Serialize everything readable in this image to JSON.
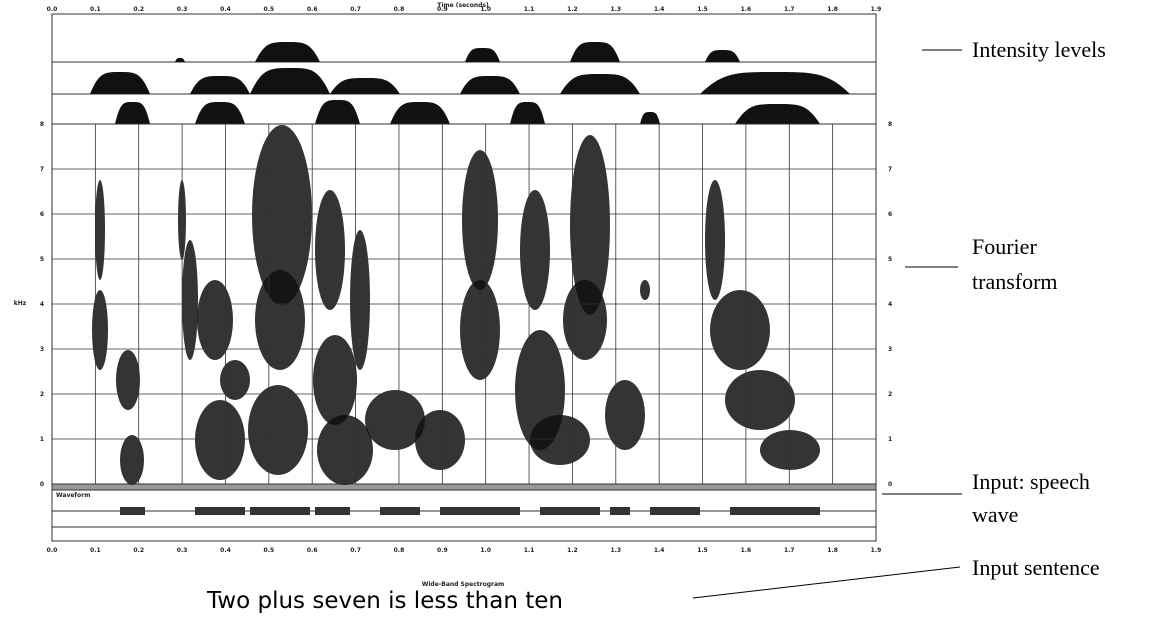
{
  "figure": {
    "time_axis_title": "Time (seconds)",
    "time_ticks": [
      "0.0",
      "0.1",
      "0.2",
      "0.3",
      "0.4",
      "0.5",
      "0.6",
      "0.7",
      "0.8",
      "0.9",
      "1.0",
      "1.1",
      "1.2",
      "1.3",
      "1.4",
      "1.5",
      "1.6",
      "1.7",
      "1.8",
      "1.9"
    ],
    "frequency_label": "kHz",
    "frequency_ticks": [
      "0",
      "1",
      "2",
      "3",
      "4",
      "5",
      "6",
      "7",
      "8"
    ],
    "waveform_label": "Waveform",
    "spectrogram_label": "Wide-Band Spectrogram",
    "sentence": "Two plus seven is less than ten",
    "annotations": [
      {
        "lines": [
          "Intensity levels"
        ]
      },
      {
        "lines": [
          "Fourier",
          "transform"
        ]
      },
      {
        "lines": [
          "Input: speech",
          "wave"
        ]
      },
      {
        "lines": [
          "Input sentence"
        ]
      }
    ]
  }
}
